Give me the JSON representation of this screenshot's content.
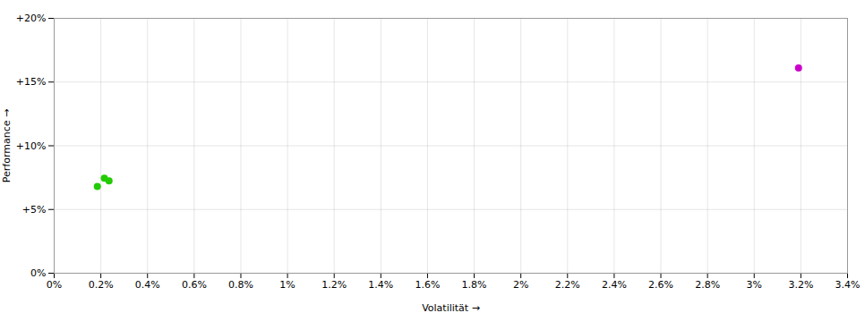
{
  "chart_data": {
    "type": "scatter",
    "xlabel": "Volatilität",
    "ylabel": "Performance",
    "xlim": [
      0,
      0.034
    ],
    "ylim": [
      0,
      0.2
    ],
    "xticks": [
      {
        "value": 0.0,
        "label": "0%"
      },
      {
        "value": 0.002,
        "label": "0.2%"
      },
      {
        "value": 0.004,
        "label": "0.4%"
      },
      {
        "value": 0.006,
        "label": "0.6%"
      },
      {
        "value": 0.008,
        "label": "0.8%"
      },
      {
        "value": 0.01,
        "label": "1%"
      },
      {
        "value": 0.012,
        "label": "1.2%"
      },
      {
        "value": 0.014,
        "label": "1.4%"
      },
      {
        "value": 0.016,
        "label": "1.6%"
      },
      {
        "value": 0.018,
        "label": "1.8%"
      },
      {
        "value": 0.02,
        "label": "2%"
      },
      {
        "value": 0.022,
        "label": "2.2%"
      },
      {
        "value": 0.024,
        "label": "2.4%"
      },
      {
        "value": 0.026,
        "label": "2.6%"
      },
      {
        "value": 0.028,
        "label": "2.8%"
      },
      {
        "value": 0.03,
        "label": "3%"
      },
      {
        "value": 0.032,
        "label": "3.2%"
      },
      {
        "value": 0.034,
        "label": "3.4%"
      }
    ],
    "yticks": [
      {
        "value": 0.0,
        "label": "0%"
      },
      {
        "value": 0.05,
        "label": "+5%"
      },
      {
        "value": 0.1,
        "label": "+10%"
      },
      {
        "value": 0.15,
        "label": "+15%"
      },
      {
        "value": 0.2,
        "label": "+20%"
      }
    ],
    "grid": true,
    "series": [
      {
        "color": "#22cc00",
        "x": [
          0.00185,
          0.00235,
          0.00215
        ],
        "values": [
          0.068,
          0.0725,
          0.0745
        ]
      },
      {
        "color": "#cc00cc",
        "x": [
          0.0319
        ],
        "values": [
          0.161
        ]
      }
    ]
  }
}
